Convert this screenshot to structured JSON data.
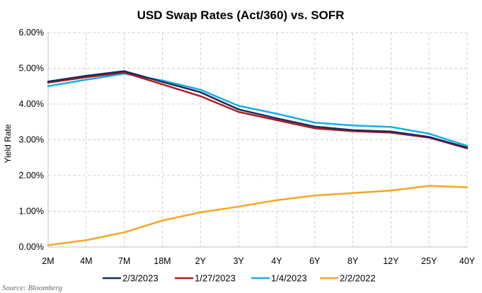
{
  "chart_data": {
    "type": "line",
    "title": "USD Swap Rates (Act/360) vs. SOFR",
    "ylabel": "Yield Rate",
    "xlabel": "",
    "categories": [
      "2M",
      "4M",
      "7M",
      "18M",
      "2Y",
      "3Y",
      "4Y",
      "6Y",
      "8Y",
      "12Y",
      "25Y",
      "40Y"
    ],
    "y_ticks": [
      "0.00%",
      "1.00%",
      "2.00%",
      "3.00%",
      "4.00%",
      "5.00%",
      "6.00%"
    ],
    "ylim": [
      0,
      6
    ],
    "grid": true,
    "legend_position": "bottom",
    "series": [
      {
        "name": "2/3/2023",
        "color": "#1a2a5e",
        "values": [
          4.63,
          4.79,
          4.92,
          4.62,
          4.33,
          3.85,
          3.6,
          3.37,
          3.27,
          3.23,
          3.08,
          2.78
        ]
      },
      {
        "name": "1/27/2023",
        "color": "#b01c1c",
        "values": [
          4.6,
          4.75,
          4.88,
          4.55,
          4.22,
          3.78,
          3.55,
          3.32,
          3.24,
          3.2,
          3.06,
          2.76
        ]
      },
      {
        "name": "1/4/2023",
        "color": "#1aaee0",
        "values": [
          4.5,
          4.68,
          4.85,
          4.66,
          4.4,
          3.95,
          3.73,
          3.48,
          3.4,
          3.36,
          3.17,
          2.83
        ]
      },
      {
        "name": "2/2/2022",
        "color": "#f5a623",
        "values": [
          0.05,
          0.19,
          0.41,
          0.74,
          0.97,
          1.13,
          1.31,
          1.44,
          1.51,
          1.58,
          1.71,
          1.67
        ]
      }
    ],
    "source": "Source: Bloomberg"
  }
}
